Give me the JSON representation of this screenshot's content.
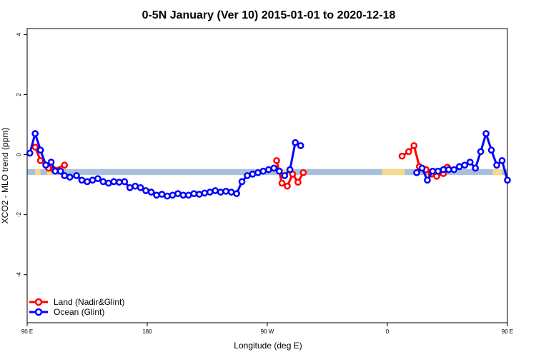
{
  "chart_data": {
    "type": "line",
    "title": "0-5N January (Ver 10)   2015-01-01 to 2020-12-18",
    "xlabel": "Longitude (deg E)",
    "ylabel": "XCO2 - MLO trend (ppm)",
    "xlim": [
      90,
      450
    ],
    "ylim": [
      -5.6,
      4.2
    ],
    "x_ticks": [
      {
        "value": 90,
        "label": "90 E"
      },
      {
        "value": 180,
        "label": "180"
      },
      {
        "value": 270,
        "label": "90 W"
      },
      {
        "value": 360,
        "label": "0"
      },
      {
        "value": 450,
        "label": "90 E"
      },
      {
        "value": 540,
        "label": "180"
      }
    ],
    "y_ticks": [
      {
        "value": 4,
        "label": "4"
      },
      {
        "value": 2,
        "label": "2"
      },
      {
        "value": 0,
        "label": "0"
      },
      {
        "value": -2,
        "label": "-2"
      },
      {
        "value": -4,
        "label": "-4"
      }
    ],
    "grid": false,
    "legend_position": "bottom-left",
    "land_band": {
      "y_range": [
        -0.68,
        -0.48
      ],
      "ocean_color": "#a9bfdc",
      "land_color": "#f7d98b",
      "land_segments": [
        [
          96,
          100
        ],
        [
          105,
          110
        ],
        [
          278,
          290
        ],
        [
          356,
          373
        ],
        [
          439,
          446
        ],
        [
          452,
          460
        ]
      ]
    },
    "series": [
      {
        "name": "Land (Nadir&Glint)",
        "color": "#ff0000",
        "segments": [
          [
            [
              96,
              0.25
            ],
            [
              100,
              -0.2
            ],
            [
              106,
              -0.45
            ],
            [
              110,
              -0.5
            ],
            [
              118,
              -0.35
            ]
          ],
          [
            [
              277,
              -0.2
            ],
            [
              281,
              -0.95
            ],
            [
              285,
              -1.05
            ],
            [
              289,
              -0.65
            ],
            [
              293,
              -0.92
            ],
            [
              297,
              -0.6
            ]
          ],
          [
            [
              371,
              -0.05
            ],
            [
              376,
              0.1
            ],
            [
              380,
              0.3
            ],
            [
              384,
              -0.4
            ],
            [
              389,
              -0.5
            ],
            [
              393,
              -0.65
            ],
            [
              397,
              -0.72
            ],
            [
              402,
              -0.63
            ],
            [
              405,
              -0.42
            ]
          ],
          [
            [
              452,
              0.25
            ],
            [
              456,
              -0.2
            ],
            [
              460,
              -0.45
            ],
            [
              464,
              -0.4
            ],
            [
              468,
              -0.35
            ],
            [
              473,
              -0.35
            ]
          ]
        ]
      },
      {
        "name": "Ocean (Glint)",
        "color": "#0000ff",
        "segments": [
          [
            [
              92,
              0.05
            ],
            [
              96,
              0.7
            ],
            [
              100,
              0.15
            ],
            [
              104,
              -0.35
            ],
            [
              108,
              -0.25
            ],
            [
              111,
              -0.55
            ],
            [
              115,
              -0.55
            ],
            [
              118,
              -0.7
            ],
            [
              122,
              -0.75
            ],
            [
              127,
              -0.7
            ],
            [
              131,
              -0.85
            ],
            [
              135,
              -0.9
            ],
            [
              139,
              -0.85
            ],
            [
              143,
              -0.8
            ],
            [
              147,
              -0.9
            ],
            [
              151,
              -0.95
            ],
            [
              155,
              -0.9
            ],
            [
              159,
              -0.92
            ],
            [
              163,
              -0.9
            ],
            [
              167,
              -1.1
            ],
            [
              171,
              -1.05
            ],
            [
              175,
              -1.1
            ],
            [
              179,
              -1.2
            ],
            [
              183,
              -1.25
            ],
            [
              187,
              -1.35
            ],
            [
              191,
              -1.32
            ],
            [
              195,
              -1.38
            ],
            [
              199,
              -1.35
            ],
            [
              203,
              -1.3
            ],
            [
              207,
              -1.35
            ],
            [
              211,
              -1.35
            ],
            [
              215,
              -1.3
            ],
            [
              219,
              -1.32
            ],
            [
              223,
              -1.28
            ],
            [
              227,
              -1.25
            ],
            [
              231,
              -1.2
            ],
            [
              235,
              -1.25
            ],
            [
              239,
              -1.22
            ],
            [
              243,
              -1.25
            ],
            [
              247,
              -1.3
            ],
            [
              251,
              -0.9
            ],
            [
              255,
              -0.7
            ],
            [
              259,
              -0.65
            ],
            [
              263,
              -0.6
            ],
            [
              267,
              -0.55
            ],
            [
              271,
              -0.5
            ],
            [
              275,
              -0.45
            ],
            [
              279,
              -0.55
            ],
            [
              283,
              -0.7
            ],
            [
              287,
              -0.5
            ],
            [
              291,
              0.4
            ],
            [
              295,
              0.3
            ]
          ],
          [
            [
              382,
              -0.6
            ],
            [
              386,
              -0.45
            ],
            [
              390,
              -0.85
            ],
            [
              394,
              -0.55
            ],
            [
              398,
              -0.55
            ],
            [
              402,
              -0.5
            ],
            [
              406,
              -0.5
            ],
            [
              410,
              -0.5
            ],
            [
              414,
              -0.4
            ],
            [
              418,
              -0.35
            ],
            [
              422,
              -0.25
            ],
            [
              426,
              -0.45
            ],
            [
              430,
              0.1
            ],
            [
              434,
              0.7
            ],
            [
              438,
              0.15
            ],
            [
              442,
              -0.35
            ],
            [
              446,
              -0.2
            ],
            [
              450,
              -0.85
            ],
            [
              454,
              -0.6
            ],
            [
              458,
              -0.7
            ],
            [
              462,
              -0.75
            ],
            [
              466,
              -0.7
            ],
            [
              470,
              -0.85
            ],
            [
              474,
              -0.9
            ],
            [
              478,
              -0.85
            ],
            [
              482,
              -0.8
            ],
            [
              486,
              -0.9
            ],
            [
              490,
              -0.95
            ],
            [
              494,
              -0.9
            ],
            [
              498,
              -0.92
            ]
          ]
        ]
      }
    ]
  }
}
